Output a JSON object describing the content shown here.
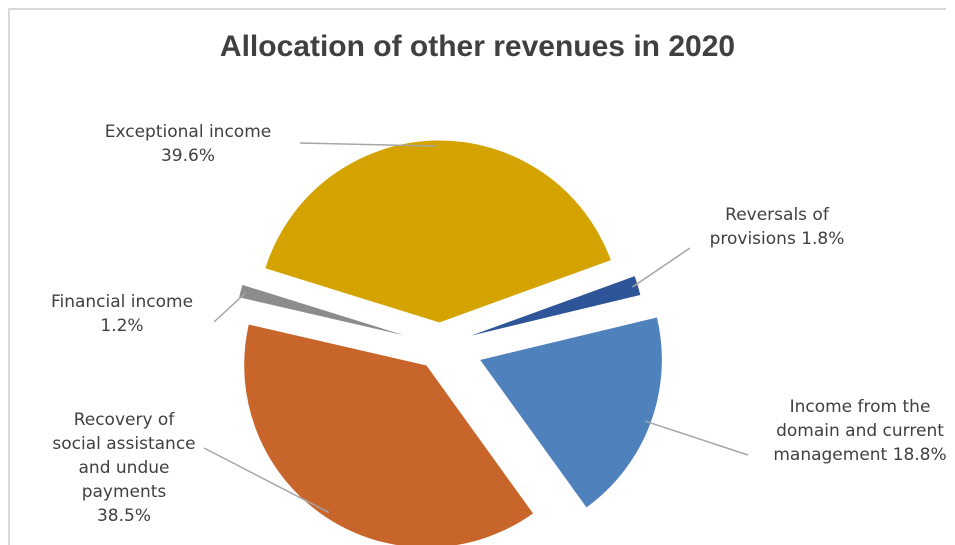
{
  "chart_data": {
    "type": "pie",
    "title": "Allocation of other revenues in 2020",
    "exploded": true,
    "slices": [
      {
        "label_lines": [
          "Reversals of",
          "provisions 1.8%"
        ],
        "value": 1.8,
        "color": "#2e5597"
      },
      {
        "label_lines": [
          "Income from the",
          "domain and current",
          "management 18.8%"
        ],
        "value": 18.8,
        "color": "#4f81bd"
      },
      {
        "label_lines": [
          "Recovery of",
          "social assistance",
          "and undue",
          "payments",
          "38.5%"
        ],
        "value": 38.5,
        "color": "#c8652a"
      },
      {
        "label_lines": [
          "Financial income",
          "1.2%"
        ],
        "value": 1.2,
        "color": "#8c8c8c"
      },
      {
        "label_lines": [
          "Exceptional income",
          "39.6%"
        ],
        "value": 39.6,
        "color": "#d4a300"
      }
    ]
  }
}
